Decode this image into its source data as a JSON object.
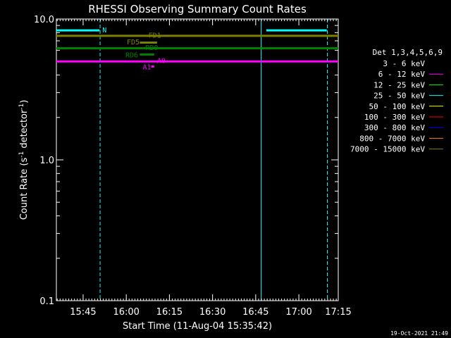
{
  "chart_data": {
    "type": "line",
    "title": "RHESSI Observing Summary Count Rates",
    "xlabel": "Start Time (11-Aug-04 15:35:42)",
    "ylabel_parts": [
      "Count Rate (s",
      "-1",
      " detector",
      "-1",
      ")"
    ],
    "yscale": "log",
    "ylim": [
      0.1,
      10.0
    ],
    "yticks": [
      {
        "value": 0.1,
        "label": "0.1"
      },
      {
        "value": 1.0,
        "label": "1.0"
      },
      {
        "value": 10.0,
        "label": "10.0"
      }
    ],
    "xlim_minutes": [
      0,
      98
    ],
    "xticks": [
      {
        "minute": 9.3,
        "label": "15:45"
      },
      {
        "minute": 24.3,
        "label": "16:00"
      },
      {
        "minute": 39.3,
        "label": "16:15"
      },
      {
        "minute": 54.3,
        "label": "16:30"
      },
      {
        "minute": 69.3,
        "label": "16:45"
      },
      {
        "minute": 84.3,
        "label": "17:00"
      },
      {
        "minute": 99.3,
        "label": "17:15"
      }
    ],
    "legend": {
      "title": "Det 1,3,4,5,6,9",
      "placement": "right",
      "entries": [
        {
          "label": "3 - 6 keV",
          "color": "#000000"
        },
        {
          "label": "6 - 12 keV",
          "color": "#ff00ff"
        },
        {
          "label": "12 - 25 keV",
          "color": "#00ff00"
        },
        {
          "label": "25 - 50 keV",
          "color": "#00ffff"
        },
        {
          "label": "50 - 100 keV",
          "color": "#ffff00"
        },
        {
          "label": "100 - 300 keV",
          "color": "#ff0000"
        },
        {
          "label": "300 - 800 keV",
          "color": "#0000ff"
        },
        {
          "label": "800 - 7000 keV",
          "color": "#ff8000"
        },
        {
          "label": "7000 - 15000 keV",
          "color": "#808000"
        }
      ]
    },
    "series": [
      {
        "color": "#00ffff",
        "y": 8.3,
        "segments": [
          [
            0,
            15
          ],
          [
            73,
            94
          ]
        ]
      },
      {
        "color": "#808000",
        "y": 7.6,
        "segments": [
          [
            0,
            98
          ]
        ]
      },
      {
        "color": "#808000",
        "y": 6.8,
        "segments": [
          [
            29,
            35
          ]
        ]
      },
      {
        "color": "#008000",
        "y": 6.2,
        "segments": [
          [
            0,
            98
          ]
        ]
      },
      {
        "color": "#008000",
        "y": 5.6,
        "segments": [
          [
            29,
            34
          ]
        ]
      },
      {
        "color": "#ff00ff",
        "y": 5.0,
        "segments": [
          [
            0,
            98
          ]
        ]
      },
      {
        "color": "#ff00ff",
        "y": 4.6,
        "segments": [
          [
            33,
            34
          ]
        ]
      }
    ],
    "flag_labels": [
      {
        "text": "N",
        "color": "#00ffff",
        "minute": 16,
        "y": 8.4
      },
      {
        "text": "FD1",
        "color": "#808000",
        "minute": 32,
        "y": 7.7
      },
      {
        "text": "FD5",
        "color": "#808000",
        "minute": 24.5,
        "y": 6.9
      },
      {
        "text": "RD0",
        "color": "#008000",
        "minute": 31,
        "y": 6.3
      },
      {
        "text": "RD6",
        "color": "#008000",
        "minute": 24,
        "y": 5.6
      },
      {
        "text": "A0",
        "color": "#ff00ff",
        "minute": 35,
        "y": 5.1
      },
      {
        "text": "A1",
        "color": "#ff00ff",
        "minute": 30,
        "y": 4.6
      }
    ],
    "night_intervals": [
      [
        0,
        15.2
      ],
      [
        71.2,
        94.2
      ]
    ],
    "interval_colors": {
      "start": "#00ffff",
      "end": "#00ffff"
    }
  },
  "timestamp": "19-Oct-2021 21:49"
}
